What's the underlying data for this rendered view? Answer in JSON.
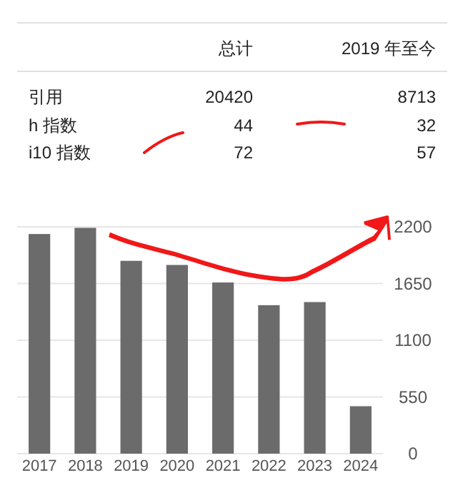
{
  "chart_data": [
    {
      "type": "other",
      "categories": [
        "引用",
        "h 指数",
        "i10 指数"
      ],
      "data_labels": true,
      "series": [
        {
          "name": "总计",
          "values": [
            20420,
            44,
            72
          ]
        },
        {
          "name": "2019 年至今",
          "values": [
            8713,
            32,
            57
          ]
        }
      ]
    },
    {
      "type": "bar",
      "categories": [
        "2017",
        "2018",
        "2019",
        "2020",
        "2021",
        "2022",
        "2023",
        "2024"
      ],
      "values": [
        2130,
        2190,
        1870,
        1830,
        1660,
        1440,
        1470,
        460
      ],
      "color": "#6b6b6b",
      "ylim": [
        0,
        2200
      ],
      "yticks": [
        0,
        550,
        1100,
        1650,
        2200
      ],
      "grid": "y"
    }
  ]
}
